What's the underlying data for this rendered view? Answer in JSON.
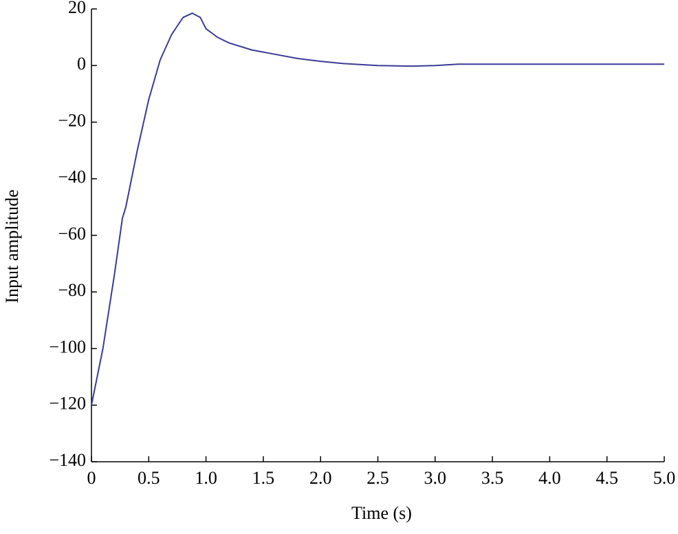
{
  "chart_data": {
    "type": "line",
    "xlabel": "Time (s)",
    "ylabel": "Input amplitude",
    "x": [
      0,
      0.1,
      0.2,
      0.27,
      0.3,
      0.4,
      0.5,
      0.6,
      0.7,
      0.8,
      0.88,
      0.95,
      1.0,
      1.1,
      1.2,
      1.4,
      1.6,
      1.8,
      2.0,
      2.2,
      2.5,
      2.8,
      3.0,
      3.2,
      3.5,
      4.0,
      4.5,
      5.0
    ],
    "series": [
      {
        "color": "#3a3a98",
        "values": [
          -120,
          -100,
          -74,
          -54,
          -50,
          -30,
          -12,
          2,
          11,
          17,
          18.5,
          17,
          13,
          10,
          8,
          5.5,
          4,
          2.5,
          1.5,
          0.7,
          0,
          -0.2,
          0,
          0.5,
          0.5,
          0.5,
          0.5,
          0.5
        ]
      }
    ],
    "xlim": [
      0,
      5
    ],
    "xticks": [
      0,
      0.5,
      {
        "value": 1,
        "label": "1.0"
      },
      1.5,
      {
        "value": 2,
        "label": "2.0"
      },
      2.5,
      {
        "value": 3,
        "label": "3.0"
      },
      3.5,
      {
        "value": 4,
        "label": "4.0"
      },
      4.5,
      {
        "value": 5,
        "label": "5.0"
      }
    ],
    "ylim": [
      -140,
      20
    ],
    "yticks": [
      {
        "value": -140,
        "label": "−140"
      },
      {
        "value": -120,
        "label": "−120"
      },
      {
        "value": -100,
        "label": "−100"
      },
      {
        "value": -80,
        "label": "−80"
      },
      {
        "value": -60,
        "label": "−60"
      },
      {
        "value": -40,
        "label": "−40"
      },
      {
        "value": -20,
        "label": "−20"
      },
      0,
      20
    ]
  }
}
